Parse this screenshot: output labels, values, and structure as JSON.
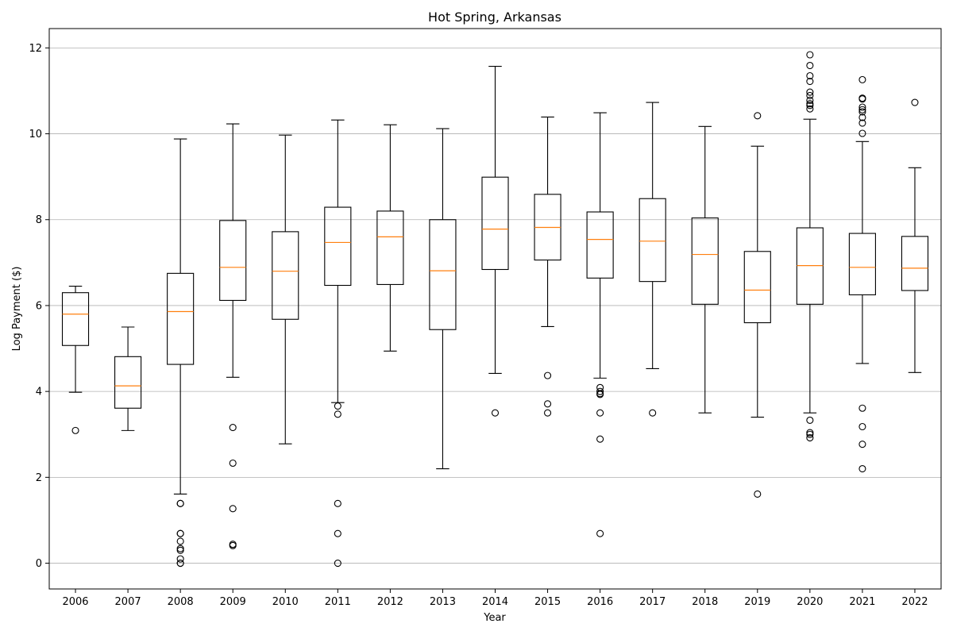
{
  "chart_data": {
    "type": "box",
    "title": "Hot Spring, Arkansas",
    "xlabel": "Year",
    "ylabel": "Log Payment ($)",
    "ylim": [
      -0.6,
      12.45
    ],
    "yticks": [
      0,
      2,
      4,
      6,
      8,
      10,
      12
    ],
    "grid": "y",
    "colors": {
      "box": "#000000",
      "median": "#ff7f0e",
      "grid": "#b0b0b0"
    },
    "boxes": [
      {
        "year": "2006",
        "whisker_low": 3.98,
        "q1": 5.07,
        "median": 5.8,
        "q3": 6.3,
        "whisker_high": 6.45,
        "outliers": [
          3.09
        ]
      },
      {
        "year": "2007",
        "whisker_low": 3.09,
        "q1": 3.61,
        "median": 4.13,
        "q3": 4.81,
        "whisker_high": 5.5,
        "outliers": []
      },
      {
        "year": "2008",
        "whisker_low": 1.61,
        "q1": 4.63,
        "median": 5.86,
        "q3": 6.75,
        "whisker_high": 9.88,
        "outliers": [
          1.39,
          1.39,
          0.69,
          0.69,
          0.51,
          0.34,
          0.3,
          0.1,
          0.0,
          0.0
        ]
      },
      {
        "year": "2009",
        "whisker_low": 4.33,
        "q1": 6.12,
        "median": 6.89,
        "q3": 7.98,
        "whisker_high": 10.23,
        "outliers": [
          3.16,
          2.33,
          1.27,
          0.44,
          0.41
        ]
      },
      {
        "year": "2010",
        "whisker_low": 2.78,
        "q1": 5.68,
        "median": 6.8,
        "q3": 7.72,
        "whisker_high": 9.97,
        "outliers": []
      },
      {
        "year": "2011",
        "whisker_low": 3.74,
        "q1": 6.47,
        "median": 7.47,
        "q3": 8.29,
        "whisker_high": 10.32,
        "outliers": [
          3.66,
          3.47,
          1.39,
          0.69,
          0.0
        ]
      },
      {
        "year": "2012",
        "whisker_low": 4.94,
        "q1": 6.49,
        "median": 7.6,
        "q3": 8.2,
        "whisker_high": 10.21,
        "outliers": []
      },
      {
        "year": "2013",
        "whisker_low": 2.2,
        "q1": 5.44,
        "median": 6.81,
        "q3": 8.0,
        "whisker_high": 10.12,
        "outliers": []
      },
      {
        "year": "2014",
        "whisker_low": 4.42,
        "q1": 6.84,
        "median": 7.78,
        "q3": 8.99,
        "whisker_high": 11.57,
        "outliers": [
          3.5
        ]
      },
      {
        "year": "2015",
        "whisker_low": 5.51,
        "q1": 7.06,
        "median": 7.82,
        "q3": 8.59,
        "whisker_high": 10.39,
        "outliers": [
          4.37,
          3.71,
          3.5
        ]
      },
      {
        "year": "2016",
        "whisker_low": 4.31,
        "q1": 6.64,
        "median": 7.54,
        "q3": 8.18,
        "whisker_high": 10.49,
        "outliers": [
          4.09,
          4.0,
          3.95,
          3.93,
          3.5,
          2.89,
          0.69
        ]
      },
      {
        "year": "2017",
        "whisker_low": 4.53,
        "q1": 6.56,
        "median": 7.5,
        "q3": 8.49,
        "whisker_high": 10.73,
        "outliers": [
          3.5
        ]
      },
      {
        "year": "2018",
        "whisker_low": 3.5,
        "q1": 6.03,
        "median": 7.19,
        "q3": 8.04,
        "whisker_high": 10.17,
        "outliers": []
      },
      {
        "year": "2019",
        "whisker_low": 3.4,
        "q1": 5.6,
        "median": 6.36,
        "q3": 7.26,
        "whisker_high": 9.71,
        "outliers": [
          10.42,
          1.61
        ]
      },
      {
        "year": "2020",
        "whisker_low": 3.5,
        "q1": 6.03,
        "median": 6.93,
        "q3": 7.81,
        "whisker_high": 10.34,
        "outliers": [
          11.84,
          11.59,
          11.35,
          11.22,
          10.97,
          10.89,
          10.78,
          10.7,
          10.66,
          10.58,
          3.33,
          3.04,
          3.0,
          2.92
        ]
      },
      {
        "year": "2021",
        "whisker_low": 4.65,
        "q1": 6.25,
        "median": 6.89,
        "q3": 7.68,
        "whisker_high": 9.82,
        "outliers": [
          11.26,
          10.83,
          10.81,
          10.62,
          10.56,
          10.51,
          10.38,
          10.25,
          10.01,
          3.61,
          3.18,
          2.77,
          2.2
        ]
      },
      {
        "year": "2022",
        "whisker_low": 4.44,
        "q1": 6.35,
        "median": 6.87,
        "q3": 7.61,
        "whisker_high": 9.21,
        "outliers": [
          10.73
        ]
      }
    ]
  }
}
